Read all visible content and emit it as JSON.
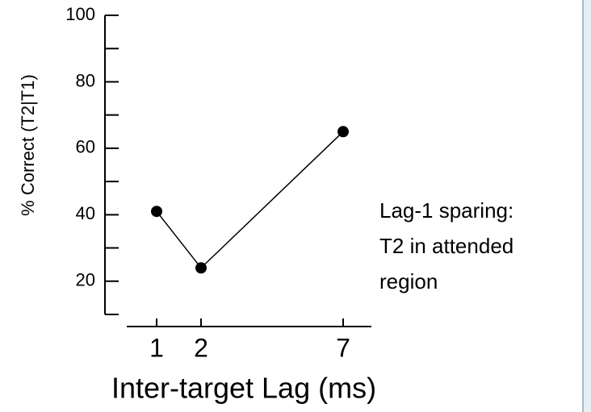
{
  "chart_data": {
    "type": "line",
    "y_label": "% Correct (T2|T1)",
    "x_label": "Inter-target Lag (ms)",
    "categories": [
      "1",
      "2",
      "7"
    ],
    "series": [
      {
        "color": "#000000",
        "values": [
          41,
          24,
          65
        ]
      }
    ],
    "ylim": [
      10,
      100
    ],
    "yticks": [
      20,
      40,
      60,
      80,
      100
    ],
    "yminor_ticks": [
      10,
      30,
      50,
      70,
      90
    ],
    "annotation": [
      "Lag-1 sparing:",
      "T2 in attended",
      "region"
    ]
  }
}
